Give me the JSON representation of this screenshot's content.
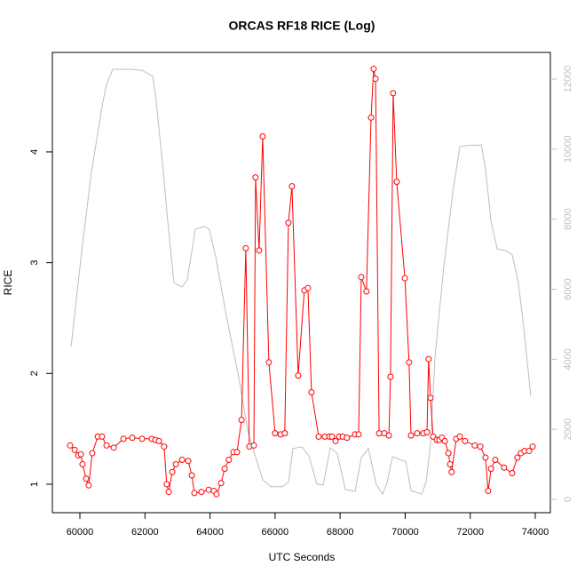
{
  "chart_data": {
    "type": "line",
    "title": "ORCAS RF18 RICE (Log)",
    "x_label": "UTC Seconds",
    "y_label": "RICE",
    "xlim": [
      59154,
      74464
    ],
    "xticks": [
      60000,
      62000,
      64000,
      66000,
      68000,
      70000,
      72000,
      74000
    ],
    "ylim": [
      0.743,
      4.898
    ],
    "yticks": [
      1,
      2,
      3,
      4
    ],
    "y2lim": [
      -381,
      12761
    ],
    "y2ticks": [
      0,
      2000,
      4000,
      6000,
      8000,
      10000,
      12000
    ],
    "series": [
      {
        "color": "#bebebe",
        "axis": "y2",
        "markers": false,
        "x": [
          59730,
          60050,
          60350,
          60680,
          60820,
          61010,
          61580,
          61910,
          62240,
          62350,
          62540,
          62730,
          62890,
          63140,
          63300,
          63550,
          63820,
          63980,
          64180,
          64500,
          64860,
          65190,
          65620,
          65870,
          66220,
          66410,
          66550,
          66820,
          67040,
          67290,
          67480,
          67700,
          67910,
          68160,
          68460,
          68650,
          68870,
          69110,
          69310,
          69440,
          69610,
          70020,
          70180,
          70510,
          70640,
          70780,
          70920,
          71190,
          71460,
          71680,
          71870,
          72340,
          72470,
          72640,
          72830,
          73100,
          73290,
          73480,
          73650,
          73860
        ],
        "values": [
          4360,
          7030,
          9310,
          11210,
          11850,
          12280,
          12280,
          12250,
          12080,
          11340,
          9570,
          7660,
          6190,
          6060,
          6270,
          7710,
          7790,
          7710,
          6900,
          5250,
          3600,
          1830,
          560,
          360,
          360,
          480,
          1450,
          1500,
          1240,
          430,
          410,
          1470,
          1320,
          280,
          230,
          1190,
          1450,
          430,
          150,
          460,
          1220,
          1070,
          250,
          150,
          480,
          1570,
          4110,
          6650,
          8730,
          10070,
          10100,
          10120,
          9440,
          7920,
          7150,
          7100,
          6980,
          6190,
          4870,
          2940
        ]
      },
      {
        "color": "#ff0000",
        "axis": "y",
        "markers": true,
        "x": [
          59700,
          59840,
          59950,
          60030,
          60080,
          60190,
          60270,
          60380,
          60550,
          60680,
          60820,
          61040,
          61340,
          61610,
          61910,
          62210,
          62320,
          62430,
          62590,
          62670,
          62730,
          62840,
          62950,
          63140,
          63330,
          63440,
          63520,
          63740,
          63960,
          64120,
          64200,
          64340,
          64450,
          64580,
          64720,
          64830,
          64970,
          65100,
          65210,
          65350,
          65400,
          65510,
          65620,
          65810,
          66000,
          66170,
          66300,
          66410,
          66520,
          66710,
          66900,
          67010,
          67120,
          67340,
          67530,
          67670,
          67750,
          67860,
          67970,
          68080,
          68210,
          68460,
          68570,
          68650,
          68810,
          68950,
          69030,
          69090,
          69200,
          69360,
          69500,
          69550,
          69630,
          69740,
          69990,
          70120,
          70180,
          70370,
          70560,
          70670,
          70720,
          70780,
          70860,
          70970,
          71050,
          71130,
          71220,
          71330,
          71380,
          71430,
          71570,
          71680,
          71840,
          72140,
          72310,
          72470,
          72550,
          72640,
          72770,
          73040,
          73290,
          73450,
          73560,
          73670,
          73810,
          73920
        ],
        "values": [
          1.35,
          1.31,
          1.26,
          1.27,
          1.18,
          1.05,
          0.99,
          1.28,
          1.43,
          1.43,
          1.35,
          1.33,
          1.41,
          1.42,
          1.41,
          1.41,
          1.4,
          1.39,
          1.34,
          1.0,
          0.93,
          1.11,
          1.18,
          1.22,
          1.21,
          1.08,
          0.92,
          0.93,
          0.95,
          0.94,
          0.91,
          1.01,
          1.14,
          1.22,
          1.29,
          1.29,
          1.58,
          3.13,
          1.34,
          1.35,
          3.77,
          3.11,
          4.14,
          2.1,
          1.46,
          1.45,
          1.46,
          3.36,
          3.69,
          1.98,
          2.75,
          2.77,
          1.83,
          1.43,
          1.43,
          1.43,
          1.43,
          1.39,
          1.43,
          1.43,
          1.42,
          1.45,
          1.45,
          2.87,
          2.74,
          4.31,
          4.75,
          4.66,
          1.46,
          1.46,
          1.44,
          1.97,
          4.53,
          3.73,
          2.86,
          2.1,
          1.44,
          1.46,
          1.46,
          1.47,
          2.13,
          1.78,
          1.43,
          1.4,
          1.4,
          1.42,
          1.39,
          1.28,
          1.18,
          1.11,
          1.41,
          1.43,
          1.39,
          1.35,
          1.34,
          1.24,
          0.94,
          1.14,
          1.22,
          1.15,
          1.1,
          1.24,
          1.28,
          1.3,
          1.3,
          1.34
        ]
      }
    ]
  }
}
